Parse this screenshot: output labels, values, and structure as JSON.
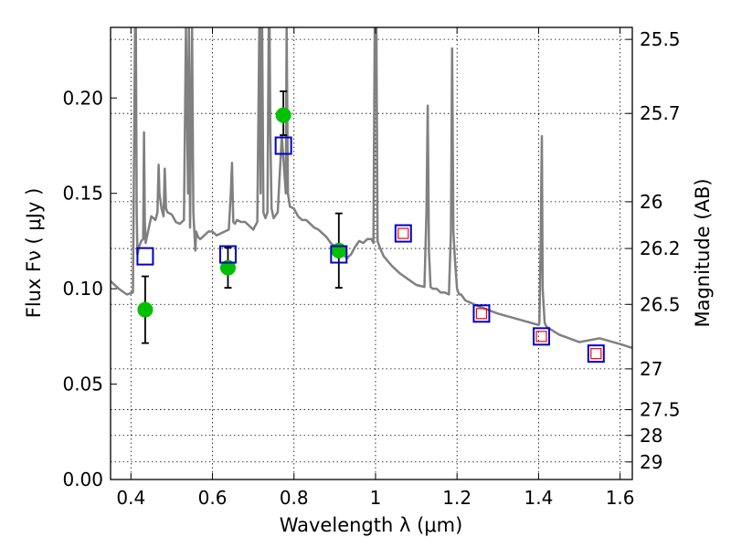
{
  "chart_data": {
    "type": "scatter",
    "title": "",
    "xlabel": "Wavelength  λ (μm)",
    "ylabel": "Flux  Fν  ( μJy )",
    "y2label": "Magnitude (AB)",
    "xlim": [
      0.35,
      1.63
    ],
    "ylim": [
      0.0,
      0.237
    ],
    "grid": true,
    "x_ticks": [
      0.4,
      0.6,
      0.8,
      1.0,
      1.2,
      1.4,
      1.6
    ],
    "x_tick_labels": [
      "0.4",
      "0.6",
      "0.8",
      "1",
      "1.2",
      "1.4",
      "1.6"
    ],
    "y_ticks": [
      0.0,
      0.05,
      0.1,
      0.15,
      0.2
    ],
    "y_tick_labels": [
      "0.00",
      "0.05",
      "0.10",
      "0.15",
      "0.20"
    ],
    "y2_ticks": [
      {
        "label": "25.5",
        "flux": 0.2307
      },
      {
        "label": "25.7",
        "flux": 0.1919
      },
      {
        "label": "26",
        "flux": 0.1456
      },
      {
        "label": "26.2",
        "flux": 0.1211
      },
      {
        "label": "26.5",
        "flux": 0.0918
      },
      {
        "label": "27",
        "flux": 0.058
      },
      {
        "label": "27.5",
        "flux": 0.0366
      },
      {
        "label": "28",
        "flux": 0.0231
      },
      {
        "label": "29",
        "flux": 0.0092
      }
    ],
    "series": [
      {
        "style": "line",
        "color": "#808080",
        "x": [
          0.35,
          0.37,
          0.39,
          0.405,
          0.41,
          0.412,
          0.414,
          0.416,
          0.42,
          0.425,
          0.43,
          0.432,
          0.434,
          0.436,
          0.44,
          0.45,
          0.46,
          0.465,
          0.468,
          0.47,
          0.475,
          0.48,
          0.483,
          0.486,
          0.49,
          0.5,
          0.51,
          0.52,
          0.53,
          0.535,
          0.54,
          0.542,
          0.545,
          0.548,
          0.55,
          0.553,
          0.556,
          0.558,
          0.56,
          0.565,
          0.57,
          0.58,
          0.59,
          0.6,
          0.61,
          0.62,
          0.63,
          0.64,
          0.645,
          0.648,
          0.651,
          0.655,
          0.66,
          0.67,
          0.68,
          0.69,
          0.7,
          0.71,
          0.715,
          0.718,
          0.72,
          0.722,
          0.725,
          0.73,
          0.735,
          0.738,
          0.74,
          0.742,
          0.745,
          0.75,
          0.76,
          0.77,
          0.78,
          0.782,
          0.785,
          0.79,
          0.8,
          0.81,
          0.82,
          0.83,
          0.84,
          0.85,
          0.86,
          0.87,
          0.88,
          0.89,
          0.9,
          0.91,
          0.92,
          0.93,
          0.94,
          0.95,
          0.96,
          0.97,
          0.98,
          0.99,
          0.995,
          0.998,
          1.0,
          1.002,
          1.005,
          1.01,
          1.02,
          1.04,
          1.06,
          1.08,
          1.1,
          1.12,
          1.125,
          1.128,
          1.131,
          1.135,
          1.14,
          1.15,
          1.16,
          1.17,
          1.18,
          1.185,
          1.188,
          1.191,
          1.195,
          1.2,
          1.205,
          1.21,
          1.22,
          1.25,
          1.3,
          1.35,
          1.4,
          1.402,
          1.405,
          1.408,
          1.41,
          1.415,
          1.42,
          1.45,
          1.5,
          1.55,
          1.6,
          1.63
        ],
        "values": [
          0.104,
          0.1,
          0.097,
          0.098,
          0.237,
          0.237,
          0.14,
          0.118,
          0.122,
          0.125,
          0.126,
          0.182,
          0.135,
          0.124,
          0.128,
          0.138,
          0.136,
          0.14,
          0.165,
          0.15,
          0.142,
          0.138,
          0.163,
          0.142,
          0.14,
          0.139,
          0.135,
          0.134,
          0.136,
          0.237,
          0.15,
          0.237,
          0.132,
          0.2,
          0.237,
          0.14,
          0.128,
          0.12,
          0.13,
          0.127,
          0.126,
          0.128,
          0.13,
          0.13,
          0.128,
          0.129,
          0.13,
          0.131,
          0.15,
          0.166,
          0.135,
          0.134,
          0.136,
          0.135,
          0.135,
          0.133,
          0.131,
          0.135,
          0.237,
          0.15,
          0.237,
          0.237,
          0.14,
          0.137,
          0.14,
          0.237,
          0.237,
          0.18,
          0.142,
          0.137,
          0.14,
          0.18,
          0.15,
          0.237,
          0.15,
          0.143,
          0.142,
          0.138,
          0.136,
          0.136,
          0.134,
          0.132,
          0.131,
          0.129,
          0.127,
          0.124,
          0.122,
          0.123,
          0.118,
          0.116,
          0.118,
          0.122,
          0.125,
          0.124,
          0.126,
          0.126,
          0.124,
          0.237,
          0.237,
          0.237,
          0.125,
          0.122,
          0.117,
          0.112,
          0.108,
          0.105,
          0.102,
          0.101,
          0.14,
          0.196,
          0.12,
          0.101,
          0.1,
          0.1,
          0.098,
          0.098,
          0.097,
          0.13,
          0.226,
          0.13,
          0.115,
          0.1,
          0.097,
          0.097,
          0.094,
          0.091,
          0.087,
          0.084,
          0.081,
          0.082,
          0.12,
          0.18,
          0.1,
          0.082,
          0.08,
          0.076,
          0.072,
          0.074,
          0.071,
          0.069
        ]
      },
      {
        "style": "marker",
        "marker": "circle",
        "color": "#00c000",
        "x": [
          0.435,
          0.638,
          0.774,
          0.91
        ],
        "values": [
          0.089,
          0.111,
          0.191,
          0.12
        ],
        "yerr_low": [
          0.0175,
          0.0105,
          0.0105,
          0.0195
        ],
        "yerr_high": [
          0.0175,
          0.0105,
          0.0125,
          0.0195
        ]
      },
      {
        "style": "marker",
        "marker": "square-open",
        "color": "#0000cc",
        "x": [
          0.435,
          0.638,
          0.774,
          0.91,
          1.068,
          1.26,
          1.407,
          1.541
        ],
        "values": [
          0.117,
          0.118,
          0.175,
          0.118,
          0.129,
          0.087,
          0.075,
          0.066
        ]
      },
      {
        "style": "marker",
        "marker": "square-open-small",
        "color": "#ff0000",
        "x": [
          1.068,
          1.26,
          1.407,
          1.541
        ],
        "values": [
          0.129,
          0.087,
          0.075,
          0.066
        ]
      }
    ]
  }
}
